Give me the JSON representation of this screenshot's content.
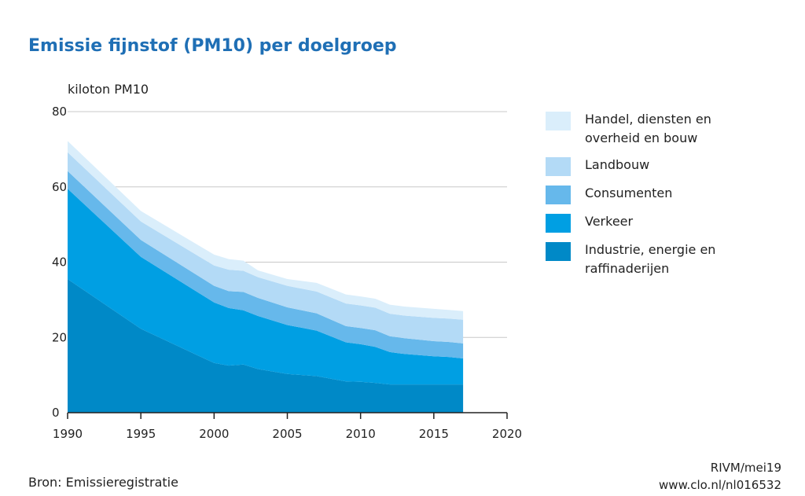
{
  "title": "Emissie fijnstof (PM10) per doelgroep",
  "unit_label": "kiloton PM10",
  "source": "Bron: Emissieregistratie",
  "credit_line1": "RIVM/mei19",
  "credit_line2": "www.clo.nl/nl016532",
  "chart_data": {
    "type": "area",
    "stacked": true,
    "title": "Emissie fijnstof (PM10) per doelgroep",
    "ylabel": "kiloton PM10",
    "xlabel": "",
    "xlim": [
      1990,
      2020
    ],
    "ylim": [
      0,
      80
    ],
    "x_ticks": [
      1990,
      1995,
      2000,
      2005,
      2010,
      2015,
      2020
    ],
    "y_ticks": [
      0,
      20,
      40,
      60,
      80
    ],
    "grid": "horizontal",
    "legend_position": "right",
    "x": [
      1990,
      1995,
      2000,
      2001,
      2002,
      2003,
      2005,
      2007,
      2009,
      2010,
      2011,
      2012,
      2013,
      2015,
      2016,
      2017
    ],
    "series": [
      {
        "name": "Industrie, energie en raffinaderijen",
        "color": "#0089c7",
        "values": [
          35.5,
          22.3,
          13.2,
          12.5,
          12.8,
          11.6,
          10.3,
          9.7,
          8.3,
          8.2,
          7.9,
          7.5,
          7.5,
          7.5,
          7.5,
          7.5
        ]
      },
      {
        "name": "Verkeer",
        "color": "#009fe3",
        "values": [
          24.0,
          19.1,
          16.1,
          15.3,
          14.4,
          14.1,
          13.0,
          12.1,
          10.4,
          10.0,
          9.6,
          8.6,
          8.1,
          7.5,
          7.3,
          6.9
        ]
      },
      {
        "name": "Consumenten",
        "color": "#66b8eb",
        "values": [
          4.7,
          4.5,
          4.4,
          4.5,
          4.9,
          4.8,
          4.7,
          4.6,
          4.3,
          4.3,
          4.4,
          4.2,
          4.2,
          4.0,
          4.0,
          4.0
        ]
      },
      {
        "name": "Landbouw",
        "color": "#b3daf6",
        "values": [
          5.0,
          4.9,
          5.4,
          5.7,
          5.6,
          5.5,
          5.7,
          5.8,
          6.0,
          6.0,
          6.0,
          6.0,
          6.0,
          6.2,
          6.2,
          6.3
        ]
      },
      {
        "name": "Handel, diensten en overheid en bouw",
        "color": "#daeefb",
        "values": [
          3.0,
          2.8,
          2.9,
          2.8,
          2.7,
          1.8,
          1.8,
          2.3,
          2.4,
          2.4,
          2.4,
          2.4,
          2.4,
          2.4,
          2.3,
          2.3
        ]
      }
    ]
  }
}
